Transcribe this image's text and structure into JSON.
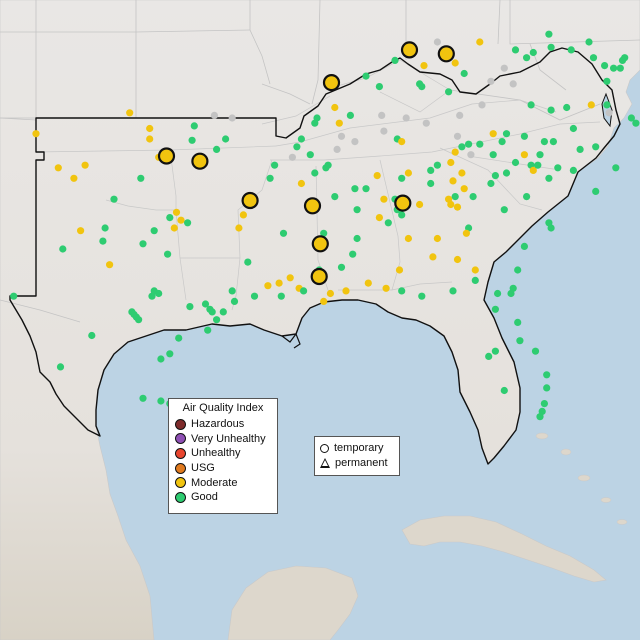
{
  "colors": {
    "water": "#bcd3e4",
    "land": "#e9e7e5",
    "land_south": "#ddd8cf",
    "hazardous": "#7e2b2b",
    "very_unhealthy": "#8e4fb4",
    "unhealthy": "#e8452e",
    "usg": "#e07a1e",
    "moderate": "#f1c40f",
    "good": "#2ecc71",
    "no_data": "#c3c3c3"
  },
  "legend_aqi": {
    "title": "Air Quality Index",
    "items": [
      {
        "label": "Hazardous",
        "color": "#7e2b2b"
      },
      {
        "label": "Very Unhealthy",
        "color": "#8e4fb4"
      },
      {
        "label": "Unhealthy",
        "color": "#e8452e"
      },
      {
        "label": "USG",
        "color": "#e07a1e"
      },
      {
        "label": "Moderate",
        "color": "#f1c40f"
      },
      {
        "label": "Good",
        "color": "#2ecc71"
      }
    ]
  },
  "legend_type": {
    "items": [
      {
        "label": "temporary",
        "shape": "circle-icon"
      },
      {
        "label": "permanent",
        "shape": "triangle-icon"
      }
    ]
  },
  "monitors_temporary": [
    {
      "lon": -97.15,
      "lat": 35.55,
      "aqi": "moderate"
    },
    {
      "lon": -95.65,
      "lat": 35.35,
      "aqi": "moderate"
    },
    {
      "lon": -93.4,
      "lat": 33.85,
      "aqi": "moderate"
    },
    {
      "lon": -90.6,
      "lat": 33.65,
      "aqi": "moderate"
    },
    {
      "lon": -90.25,
      "lat": 32.2,
      "aqi": "moderate"
    },
    {
      "lon": -90.3,
      "lat": 30.95,
      "aqi": "moderate"
    },
    {
      "lon": -86.55,
      "lat": 33.75,
      "aqi": "moderate"
    },
    {
      "lon": -89.75,
      "lat": 38.35,
      "aqi": "moderate"
    },
    {
      "lon": -86.25,
      "lat": 39.6,
      "aqi": "moderate"
    },
    {
      "lon": -84.6,
      "lat": 39.45,
      "aqi": "moderate"
    }
  ],
  "monitors_small": [
    {
      "lon": -103.0,
      "lat": 36.4,
      "aqi": "moderate"
    },
    {
      "lon": -102.0,
      "lat": 35.1,
      "aqi": "moderate"
    },
    {
      "lon": -101.3,
      "lat": 34.7,
      "aqi": "moderate"
    },
    {
      "lon": -98.8,
      "lat": 37.2,
      "aqi": "moderate"
    },
    {
      "lon": -97.9,
      "lat": 36.6,
      "aqi": "moderate"
    },
    {
      "lon": -97.9,
      "lat": 36.2,
      "aqi": "moderate"
    },
    {
      "lon": -96.0,
      "lat": 36.15,
      "aqi": "good"
    },
    {
      "lon": -95.9,
      "lat": 36.7,
      "aqi": "good"
    },
    {
      "lon": -95.0,
      "lat": 37.1,
      "aqi": "no_data"
    },
    {
      "lon": -94.2,
      "lat": 37.0,
      "aqi": "no_data"
    },
    {
      "lon": -94.5,
      "lat": 36.2,
      "aqi": "good"
    },
    {
      "lon": -94.9,
      "lat": 35.8,
      "aqi": "good"
    },
    {
      "lon": -92.3,
      "lat": 35.2,
      "aqi": "good"
    },
    {
      "lon": -93.9,
      "lat": 32.8,
      "aqi": "moderate"
    },
    {
      "lon": -93.7,
      "lat": 33.3,
      "aqi": "moderate"
    },
    {
      "lon": -93.5,
      "lat": 31.5,
      "aqi": "good"
    },
    {
      "lon": -94.2,
      "lat": 30.4,
      "aqi": "good"
    },
    {
      "lon": -94.1,
      "lat": 30.0,
      "aqi": "good"
    },
    {
      "lon": -94.6,
      "lat": 29.6,
      "aqi": "good"
    },
    {
      "lon": -95.2,
      "lat": 29.7,
      "aqi": "good"
    },
    {
      "lon": -95.4,
      "lat": 29.9,
      "aqi": "good"
    },
    {
      "lon": -95.1,
      "lat": 29.6,
      "aqi": "good"
    },
    {
      "lon": -96.1,
      "lat": 29.8,
      "aqi": "good"
    },
    {
      "lon": -97.1,
      "lat": 31.8,
      "aqi": "good"
    },
    {
      "lon": -97.7,
      "lat": 32.7,
      "aqi": "good"
    },
    {
      "lon": -96.8,
      "lat": 32.8,
      "aqi": "moderate"
    },
    {
      "lon": -96.7,
      "lat": 33.4,
      "aqi": "moderate"
    },
    {
      "lon": -96.5,
      "lat": 33.1,
      "aqi": "moderate"
    },
    {
      "lon": -96.2,
      "lat": 33.0,
      "aqi": "good"
    },
    {
      "lon": -97.0,
      "lat": 33.2,
      "aqi": "good"
    },
    {
      "lon": -98.2,
      "lat": 32.2,
      "aqi": "good"
    },
    {
      "lon": -97.5,
      "lat": 30.3,
      "aqi": "good"
    },
    {
      "lon": -97.8,
      "lat": 30.2,
      "aqi": "good"
    },
    {
      "lon": -97.7,
      "lat": 30.4,
      "aqi": "good"
    },
    {
      "lon": -98.5,
      "lat": 29.4,
      "aqi": "good"
    },
    {
      "lon": -98.6,
      "lat": 29.5,
      "aqi": "good"
    },
    {
      "lon": -98.4,
      "lat": 29.3,
      "aqi": "good"
    },
    {
      "lon": -98.7,
      "lat": 29.6,
      "aqi": "good"
    },
    {
      "lon": -100.5,
      "lat": 28.7,
      "aqi": "good"
    },
    {
      "lon": -97.4,
      "lat": 27.8,
      "aqi": "good"
    },
    {
      "lon": -97.0,
      "lat": 28.0,
      "aqi": "good"
    },
    {
      "lon": -97.4,
      "lat": 26.2,
      "aqi": "good"
    },
    {
      "lon": -98.2,
      "lat": 26.3,
      "aqi": "good"
    },
    {
      "lon": -97.0,
      "lat": 26.1,
      "aqi": "good"
    },
    {
      "lon": -93.2,
      "lat": 30.2,
      "aqi": "good"
    },
    {
      "lon": -92.0,
      "lat": 30.2,
      "aqi": "good"
    },
    {
      "lon": -91.2,
      "lat": 30.5,
      "aqi": "moderate"
    },
    {
      "lon": -91.0,
      "lat": 30.4,
      "aqi": "good"
    },
    {
      "lon": -90.1,
      "lat": 30.0,
      "aqi": "moderate"
    },
    {
      "lon": -89.8,
      "lat": 30.3,
      "aqi": "moderate"
    },
    {
      "lon": -92.6,
      "lat": 30.6,
      "aqi": "moderate"
    },
    {
      "lon": -92.1,
      "lat": 30.7,
      "aqi": "moderate"
    },
    {
      "lon": -91.6,
      "lat": 30.9,
      "aqi": "moderate"
    },
    {
      "lon": -89.1,
      "lat": 30.4,
      "aqi": "moderate"
    },
    {
      "lon": -88.1,
      "lat": 30.7,
      "aqi": "moderate"
    },
    {
      "lon": -87.3,
      "lat": 30.5,
      "aqi": "moderate"
    },
    {
      "lon": -86.6,
      "lat": 30.4,
      "aqi": "good"
    },
    {
      "lon": -85.7,
      "lat": 30.2,
      "aqi": "good"
    },
    {
      "lon": -84.3,
      "lat": 30.4,
      "aqi": "good"
    },
    {
      "lon": -83.3,
      "lat": 30.8,
      "aqi": "good"
    },
    {
      "lon": -82.3,
      "lat": 30.3,
      "aqi": "good"
    },
    {
      "lon": -81.7,
      "lat": 30.3,
      "aqi": "good"
    },
    {
      "lon": -81.6,
      "lat": 30.5,
      "aqi": "good"
    },
    {
      "lon": -81.4,
      "lat": 29.2,
      "aqi": "good"
    },
    {
      "lon": -81.3,
      "lat": 28.5,
      "aqi": "good"
    },
    {
      "lon": -82.4,
      "lat": 29.7,
      "aqi": "good"
    },
    {
      "lon": -82.4,
      "lat": 28.1,
      "aqi": "good"
    },
    {
      "lon": -82.7,
      "lat": 27.9,
      "aqi": "good"
    },
    {
      "lon": -82.0,
      "lat": 26.6,
      "aqi": "good"
    },
    {
      "lon": -80.1,
      "lat": 26.7,
      "aqi": "good"
    },
    {
      "lon": -80.2,
      "lat": 26.1,
      "aqi": "good"
    },
    {
      "lon": -80.3,
      "lat": 25.8,
      "aqi": "good"
    },
    {
      "lon": -80.1,
      "lat": 27.2,
      "aqi": "good"
    },
    {
      "lon": -80.4,
      "lat": 25.6,
      "aqi": "good"
    },
    {
      "lon": -80.6,
      "lat": 28.1,
      "aqi": "good"
    },
    {
      "lon": -88.2,
      "lat": 34.3,
      "aqi": "good"
    },
    {
      "lon": -88.6,
      "lat": 33.5,
      "aqi": "good"
    },
    {
      "lon": -88.6,
      "lat": 32.4,
      "aqi": "good"
    },
    {
      "lon": -89.3,
      "lat": 31.3,
      "aqi": "good"
    },
    {
      "lon": -86.8,
      "lat": 33.5,
      "aqi": "good"
    },
    {
      "lon": -86.7,
      "lat": 33.6,
      "aqi": "moderate"
    },
    {
      "lon": -86.6,
      "lat": 33.3,
      "aqi": "good"
    },
    {
      "lon": -85.8,
      "lat": 33.7,
      "aqi": "moderate"
    },
    {
      "lon": -86.3,
      "lat": 32.4,
      "aqi": "moderate"
    },
    {
      "lon": -87.6,
      "lat": 33.2,
      "aqi": "moderate"
    },
    {
      "lon": -85.0,
      "lat": 32.4,
      "aqi": "moderate"
    },
    {
      "lon": -84.4,
      "lat": 33.7,
      "aqi": "moderate"
    },
    {
      "lon": -84.5,
      "lat": 33.9,
      "aqi": "moderate"
    },
    {
      "lon": -84.2,
      "lat": 34.0,
      "aqi": "good"
    },
    {
      "lon": -84.1,
      "lat": 33.6,
      "aqi": "moderate"
    },
    {
      "lon": -83.4,
      "lat": 34.0,
      "aqi": "good"
    },
    {
      "lon": -83.6,
      "lat": 32.8,
      "aqi": "good"
    },
    {
      "lon": -82.0,
      "lat": 33.5,
      "aqi": "good"
    },
    {
      "lon": -84.1,
      "lat": 31.6,
      "aqi": "moderate"
    },
    {
      "lon": -83.3,
      "lat": 31.2,
      "aqi": "moderate"
    },
    {
      "lon": -81.1,
      "lat": 32.1,
      "aqi": "good"
    },
    {
      "lon": -81.4,
      "lat": 31.2,
      "aqi": "good"
    },
    {
      "lon": -81.0,
      "lat": 34.0,
      "aqi": "good"
    },
    {
      "lon": -82.4,
      "lat": 34.8,
      "aqi": "good"
    },
    {
      "lon": -82.6,
      "lat": 34.5,
      "aqi": "good"
    },
    {
      "lon": -81.9,
      "lat": 34.9,
      "aqi": "good"
    },
    {
      "lon": -80.8,
      "lat": 35.2,
      "aqi": "good"
    },
    {
      "lon": -80.4,
      "lat": 35.6,
      "aqi": "good"
    },
    {
      "lon": -80.2,
      "lat": 36.1,
      "aqi": "good"
    },
    {
      "lon": -79.8,
      "lat": 36.1,
      "aqi": "good"
    },
    {
      "lon": -78.6,
      "lat": 35.8,
      "aqi": "good"
    },
    {
      "lon": -77.9,
      "lat": 35.9,
      "aqi": "good"
    },
    {
      "lon": -78.9,
      "lat": 35.0,
      "aqi": "good"
    },
    {
      "lon": -77.0,
      "lat": 35.1,
      "aqi": "good"
    },
    {
      "lon": -77.9,
      "lat": 34.2,
      "aqi": "good"
    },
    {
      "lon": -79.9,
      "lat": 32.8,
      "aqi": "good"
    },
    {
      "lon": -80.0,
      "lat": 33.0,
      "aqi": "good"
    },
    {
      "lon": -82.5,
      "lat": 35.6,
      "aqi": "good"
    },
    {
      "lon": -83.5,
      "lat": 35.6,
      "aqi": "no_data"
    },
    {
      "lon": -83.9,
      "lat": 35.9,
      "aqi": "good"
    },
    {
      "lon": -84.2,
      "lat": 35.7,
      "aqi": "moderate"
    },
    {
      "lon": -85.3,
      "lat": 35.0,
      "aqi": "good"
    },
    {
      "lon": -86.8,
      "lat": 36.2,
      "aqi": "good"
    },
    {
      "lon": -86.6,
      "lat": 36.1,
      "aqi": "moderate"
    },
    {
      "lon": -87.4,
      "lat": 36.5,
      "aqi": "no_data"
    },
    {
      "lon": -88.7,
      "lat": 36.1,
      "aqi": "no_data"
    },
    {
      "lon": -90.0,
      "lat": 35.1,
      "aqi": "good"
    },
    {
      "lon": -89.9,
      "lat": 35.2,
      "aqi": "good"
    },
    {
      "lon": -89.3,
      "lat": 36.3,
      "aqi": "no_data"
    },
    {
      "lon": -89.5,
      "lat": 35.8,
      "aqi": "no_data"
    },
    {
      "lon": -88.9,
      "lat": 37.1,
      "aqi": "good"
    },
    {
      "lon": -87.5,
      "lat": 37.1,
      "aqi": "no_data"
    },
    {
      "lon": -86.4,
      "lat": 37.0,
      "aqi": "no_data"
    },
    {
      "lon": -85.7,
      "lat": 38.2,
      "aqi": "good"
    },
    {
      "lon": -85.8,
      "lat": 38.3,
      "aqi": "good"
    },
    {
      "lon": -84.5,
      "lat": 38.0,
      "aqi": "good"
    },
    {
      "lon": -84.0,
      "lat": 37.1,
      "aqi": "no_data"
    },
    {
      "lon": -83.0,
      "lat": 37.5,
      "aqi": "no_data"
    },
    {
      "lon": -82.6,
      "lat": 38.4,
      "aqi": "no_data"
    },
    {
      "lon": -81.6,
      "lat": 38.3,
      "aqi": "no_data"
    },
    {
      "lon": -80.8,
      "lat": 37.5,
      "aqi": "good"
    },
    {
      "lon": -79.9,
      "lat": 37.3,
      "aqi": "good"
    },
    {
      "lon": -79.2,
      "lat": 37.4,
      "aqi": "good"
    },
    {
      "lon": -78.1,
      "lat": 37.5,
      "aqi": "moderate"
    },
    {
      "lon": -77.4,
      "lat": 37.5,
      "aqi": "good"
    },
    {
      "lon": -76.3,
      "lat": 37.0,
      "aqi": "good"
    },
    {
      "lon": -76.8,
      "lat": 38.9,
      "aqi": "good"
    },
    {
      "lon": -77.1,
      "lat": 38.9,
      "aqi": "good"
    },
    {
      "lon": -76.6,
      "lat": 39.3,
      "aqi": "good"
    },
    {
      "lon": -76.7,
      "lat": 39.2,
      "aqi": "good"
    },
    {
      "lon": -78.0,
      "lat": 39.3,
      "aqi": "good"
    },
    {
      "lon": -79.0,
      "lat": 39.6,
      "aqi": "good"
    },
    {
      "lon": -80.7,
      "lat": 39.5,
      "aqi": "good"
    },
    {
      "lon": -80.0,
      "lat": 40.2,
      "aqi": "good"
    },
    {
      "lon": -81.5,
      "lat": 39.6,
      "aqi": "good"
    },
    {
      "lon": -82.0,
      "lat": 38.9,
      "aqi": "no_data"
    },
    {
      "lon": -83.1,
      "lat": 39.9,
      "aqi": "moderate"
    },
    {
      "lon": -84.2,
      "lat": 39.1,
      "aqi": "moderate"
    },
    {
      "lon": -85.6,
      "lat": 39.0,
      "aqi": "moderate"
    },
    {
      "lon": -86.9,
      "lat": 39.2,
      "aqi": "good"
    },
    {
      "lon": -87.6,
      "lat": 38.2,
      "aqi": "good"
    },
    {
      "lon": -88.2,
      "lat": 38.6,
      "aqi": "good"
    },
    {
      "lon": -89.6,
      "lat": 37.4,
      "aqi": "moderate"
    },
    {
      "lon": -90.4,
      "lat": 37.0,
      "aqi": "good"
    },
    {
      "lon": -90.5,
      "lat": 36.8,
      "aqi": "good"
    },
    {
      "lon": -91.3,
      "lat": 35.9,
      "aqi": "good"
    },
    {
      "lon": -91.5,
      "lat": 35.5,
      "aqi": "no_data"
    },
    {
      "lon": -90.7,
      "lat": 35.6,
      "aqi": "good"
    },
    {
      "lon": -90.5,
      "lat": 34.9,
      "aqi": "good"
    },
    {
      "lon": -91.1,
      "lat": 34.5,
      "aqi": "moderate"
    },
    {
      "lon": -91.9,
      "lat": 32.6,
      "aqi": "good"
    },
    {
      "lon": -90.1,
      "lat": 32.6,
      "aqi": "good"
    },
    {
      "lon": -90.3,
      "lat": 31.2,
      "aqi": "good"
    },
    {
      "lon": -88.8,
      "lat": 31.8,
      "aqi": "good"
    },
    {
      "lon": -77.4,
      "lat": 38.4,
      "aqi": "good"
    },
    {
      "lon": -77.5,
      "lat": 39.0,
      "aqi": "good"
    },
    {
      "lon": -78.2,
      "lat": 39.9,
      "aqi": "good"
    },
    {
      "lon": -75.7,
      "lat": 36.0,
      "aqi": "good"
    },
    {
      "lon": -76.1,
      "lat": 36.8,
      "aqi": "good"
    },
    {
      "lon": -77.3,
      "lat": 37.2,
      "aqi": "no_data"
    },
    {
      "lon": -78.9,
      "lat": 36.6,
      "aqi": "good"
    },
    {
      "lon": -79.6,
      "lat": 35.1,
      "aqi": "good"
    },
    {
      "lon": -80.0,
      "lat": 34.7,
      "aqi": "good"
    },
    {
      "lon": -81.5,
      "lat": 35.3,
      "aqi": "good"
    },
    {
      "lon": -81.1,
      "lat": 35.6,
      "aqi": "moderate"
    },
    {
      "lon": -80.7,
      "lat": 35.0,
      "aqi": "moderate"
    },
    {
      "lon": -80.5,
      "lat": 35.2,
      "aqi": "good"
    },
    {
      "lon": -81.1,
      "lat": 36.3,
      "aqi": "good"
    },
    {
      "lon": -81.9,
      "lat": 36.4,
      "aqi": "good"
    },
    {
      "lon": -82.1,
      "lat": 36.1,
      "aqi": "good"
    },
    {
      "lon": -82.5,
      "lat": 36.4,
      "aqi": "moderate"
    },
    {
      "lon": -83.1,
      "lat": 36.0,
      "aqi": "good"
    },
    {
      "lon": -83.6,
      "lat": 36.0,
      "aqi": "good"
    },
    {
      "lon": -84.1,
      "lat": 36.3,
      "aqi": "no_data"
    },
    {
      "lon": -84.4,
      "lat": 35.3,
      "aqi": "moderate"
    },
    {
      "lon": -85.0,
      "lat": 35.2,
      "aqi": "good"
    },
    {
      "lon": -85.3,
      "lat": 34.5,
      "aqi": "good"
    },
    {
      "lon": -84.3,
      "lat": 34.6,
      "aqi": "moderate"
    },
    {
      "lon": -83.9,
      "lat": 34.9,
      "aqi": "moderate"
    },
    {
      "lon": -83.8,
      "lat": 34.3,
      "aqi": "moderate"
    },
    {
      "lon": -87.7,
      "lat": 34.8,
      "aqi": "moderate"
    },
    {
      "lon": -86.6,
      "lat": 34.7,
      "aqi": "good"
    },
    {
      "lon": -86.3,
      "lat": 34.9,
      "aqi": "moderate"
    },
    {
      "lon": -88.7,
      "lat": 34.3,
      "aqi": "good"
    },
    {
      "lon": -89.6,
      "lat": 34.0,
      "aqi": "good"
    },
    {
      "lon": -87.4,
      "lat": 33.9,
      "aqi": "moderate"
    },
    {
      "lon": -86.9,
      "lat": 33.9,
      "aqi": "good"
    },
    {
      "lon": -86.7,
      "lat": 33.7,
      "aqi": "good"
    },
    {
      "lon": -87.2,
      "lat": 33.0,
      "aqi": "good"
    },
    {
      "lon": -83.7,
      "lat": 32.6,
      "aqi": "moderate"
    },
    {
      "lon": -85.2,
      "lat": 31.7,
      "aqi": "moderate"
    },
    {
      "lon": -86.7,
      "lat": 31.2,
      "aqi": "moderate"
    },
    {
      "lon": -91.1,
      "lat": 36.2,
      "aqi": "good"
    },
    {
      "lon": -97.5,
      "lat": 35.5,
      "aqi": "moderate"
    },
    {
      "lon": -98.3,
      "lat": 34.7,
      "aqi": "good"
    },
    {
      "lon": -99.7,
      "lat": 31.4,
      "aqi": "moderate"
    },
    {
      "lon": -99.9,
      "lat": 32.8,
      "aqi": "good"
    },
    {
      "lon": -101.8,
      "lat": 32.0,
      "aqi": "good"
    },
    {
      "lon": -101.0,
      "lat": 32.7,
      "aqi": "moderate"
    },
    {
      "lon": -99.5,
      "lat": 33.9,
      "aqi": "good"
    },
    {
      "lon": -100.0,
      "lat": 32.3,
      "aqi": "good"
    },
    {
      "lon": -100.8,
      "lat": 35.2,
      "aqi": "moderate"
    },
    {
      "lon": -104.0,
      "lat": 30.2,
      "aqi": "good"
    },
    {
      "lon": -101.9,
      "lat": 27.5,
      "aqi": "good"
    },
    {
      "lon": -95.3,
      "lat": 28.9,
      "aqi": "good"
    },
    {
      "lon": -96.6,
      "lat": 28.6,
      "aqi": "good"
    },
    {
      "lon": -94.9,
      "lat": 29.3,
      "aqi": "good"
    },
    {
      "lon": -92.5,
      "lat": 34.7,
      "aqi": "good"
    },
    {
      "lon": -89.4,
      "lat": 36.8,
      "aqi": "moderate"
    },
    {
      "lon": -85.5,
      "lat": 36.8,
      "aqi": "no_data"
    },
    {
      "lon": -85.0,
      "lat": 39.9,
      "aqi": "no_data"
    },
    {
      "lon": -83.8,
      "lat": 38.7,
      "aqi": "good"
    },
    {
      "lon": -81.0,
      "lat": 39.3,
      "aqi": "good"
    },
    {
      "lon": -79.9,
      "lat": 39.7,
      "aqi": "good"
    }
  ]
}
